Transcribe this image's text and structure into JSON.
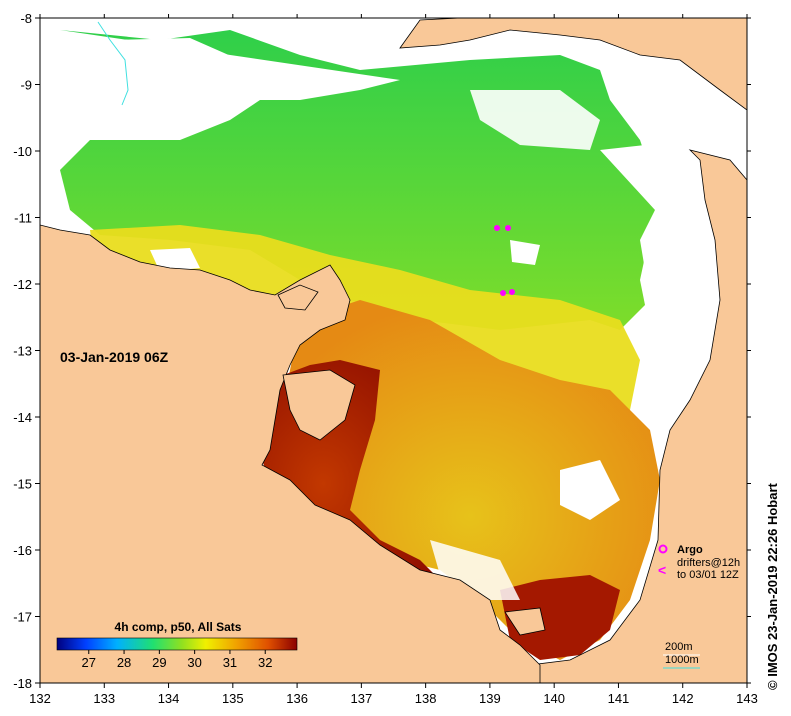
{
  "map": {
    "lon_ticks": [
      "132",
      "133",
      "134",
      "135",
      "136",
      "137",
      "138",
      "139",
      "140",
      "141",
      "142",
      "143"
    ],
    "lat_ticks": [
      "-8",
      "-9",
      "-10",
      "-11",
      "-12",
      "-13",
      "-14",
      "-15",
      "-16",
      "-17",
      "-18"
    ],
    "lon_range": [
      132,
      143
    ],
    "lat_range": [
      -8,
      -18
    ],
    "date_label": "03-Jan-2019 06Z",
    "colorbar": {
      "title": "4h comp, p50, All Sats",
      "ticks": [
        "27",
        "28",
        "29",
        "30",
        "31",
        "32"
      ],
      "min": 26.1,
      "max": 32.9
    },
    "legend": {
      "argo_label": "Argo",
      "drifters_label": "drifters@12h",
      "drifters_to": "to 03/01 12Z"
    },
    "isobaths": {
      "label_200": "200m",
      "label_1000": "1000m"
    },
    "credit": "IMOS 23-Jan-2019 22:26 Hobart",
    "colors": {
      "land": "#f9c898",
      "hot": "#9b1000",
      "warm": "#e07a10",
      "yellow": "#eadc10",
      "green": "#39d23a",
      "argo": "#ff00ff"
    }
  }
}
